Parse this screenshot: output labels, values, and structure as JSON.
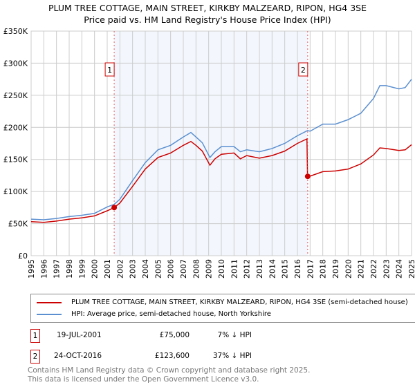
{
  "chart_data": {
    "type": "line",
    "title": "PLUM TREE COTTAGE, MAIN STREET, KIRKBY MALZEARD, RIPON, HG4 3SE",
    "subtitle": "Price paid vs. HM Land Registry's House Price Index (HPI)",
    "xlim": [
      1995,
      2025
    ],
    "ylim": [
      0,
      350000
    ],
    "x_ticks": [
      "1995",
      "1996",
      "1997",
      "1998",
      "1999",
      "2000",
      "2001",
      "2002",
      "2003",
      "2004",
      "2005",
      "2006",
      "2007",
      "2008",
      "2009",
      "2010",
      "2011",
      "2012",
      "2013",
      "2014",
      "2015",
      "2016",
      "2017",
      "2018",
      "2019",
      "2020",
      "2021",
      "2022",
      "2023",
      "2024",
      "2025"
    ],
    "y_ticks": [
      "£0",
      "£50K",
      "£100K",
      "£150K",
      "£200K",
      "£250K",
      "£300K",
      "£350K"
    ],
    "series": [
      {
        "name": "PLUM TREE COTTAGE, MAIN STREET, KIRKBY MALZEARD, RIPON, HG4 3SE (semi-detached house)",
        "color": "#cc0000",
        "x": [
          1995,
          1996,
          1997,
          1998,
          1999,
          2000,
          2001,
          2001.55,
          2002,
          2003,
          2004,
          2005,
          2006,
          2007,
          2007.6,
          2008,
          2008.5,
          2009.1,
          2009.5,
          2010,
          2011,
          2011.5,
          2012,
          2013,
          2014,
          2015,
          2016,
          2016.75,
          2016.8,
          2017,
          2018,
          2019,
          2020,
          2021,
          2022,
          2022.5,
          2023,
          2024,
          2024.5,
          2025
        ],
        "y": [
          53000,
          52000,
          54000,
          57000,
          59000,
          62000,
          70000,
          75000,
          82000,
          108000,
          135000,
          153000,
          160000,
          172000,
          178000,
          172000,
          163000,
          141000,
          151000,
          158000,
          160000,
          151000,
          156000,
          152000,
          156000,
          163000,
          175000,
          182000,
          123600,
          124000,
          131000,
          132000,
          135000,
          143000,
          157000,
          168000,
          167000,
          164000,
          165000,
          173000
        ]
      },
      {
        "name": "HPI: Average price, semi-detached house, North Yorkshire",
        "color": "#5b8fd0",
        "x": [
          1995,
          1996,
          1997,
          1998,
          1999,
          2000,
          2001,
          2001.55,
          2002,
          2003,
          2004,
          2005,
          2006,
          2007,
          2007.6,
          2008,
          2008.5,
          2009.1,
          2009.5,
          2010,
          2011,
          2011.5,
          2012,
          2013,
          2014,
          2015,
          2016,
          2016.8,
          2017,
          2018,
          2019,
          2020,
          2021,
          2022,
          2022.5,
          2023,
          2024,
          2024.5,
          2025
        ],
        "y": [
          57000,
          56000,
          58000,
          61000,
          63000,
          66000,
          76000,
          80000,
          88000,
          117000,
          145000,
          165000,
          172000,
          185000,
          192000,
          185000,
          176000,
          153000,
          162000,
          170000,
          170000,
          162000,
          165000,
          162000,
          167000,
          175000,
          187000,
          195000,
          194000,
          205000,
          205000,
          212000,
          222000,
          245000,
          265000,
          265000,
          260000,
          262000,
          275000
        ]
      }
    ],
    "sales": [
      {
        "label": "1",
        "x": 2001.55,
        "y": 75000
      },
      {
        "label": "2",
        "x": 2016.81,
        "y": 123600
      }
    ],
    "legend": [
      "PLUM TREE COTTAGE, MAIN STREET, KIRKBY MALZEARD, RIPON, HG4 3SE (semi-detached house)",
      "HPI: Average price, semi-detached house, North Yorkshire"
    ]
  },
  "table": [
    {
      "n": "1",
      "date": "19-JUL-2001",
      "price": "£75,000",
      "hpi": "7% ↓ HPI"
    },
    {
      "n": "2",
      "date": "24-OCT-2016",
      "price": "£123,600",
      "hpi": "37% ↓ HPI"
    }
  ],
  "footer": [
    "Contains HM Land Registry data © Crown copyright and database right 2025.",
    "This data is licensed under the Open Government Licence v3.0."
  ]
}
